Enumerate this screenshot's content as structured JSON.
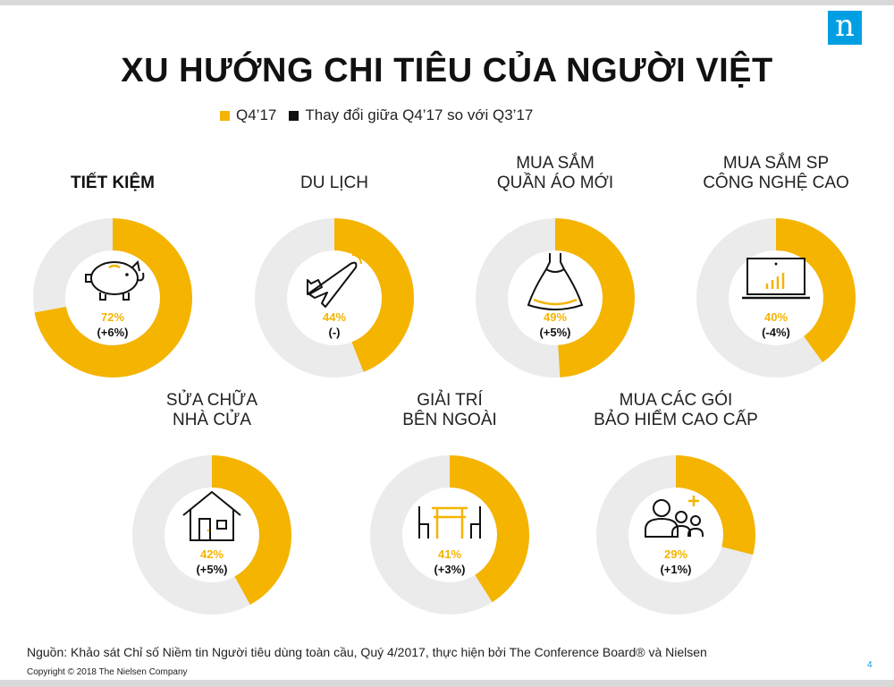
{
  "header": {
    "logo_text": "n",
    "title": "XU HƯỚNG CHI TIÊU CỦA NGƯỜI VIỆT"
  },
  "legend": [
    {
      "label": "Q4’17",
      "color": "#f4b400"
    },
    {
      "label": "Thay đổi giữa Q4’17 so với Q3’17",
      "color": "#111111"
    }
  ],
  "colors": {
    "accent": "#f4b400",
    "track": "#ebebeb",
    "brand": "#009fe3"
  },
  "chart_data": {
    "type": "pie",
    "style": "donut",
    "series_names": [
      "Q4’17",
      "Thay đổi giữa Q4’17 so với Q3’17"
    ],
    "items": [
      {
        "title_lines": [
          "TIẾT KIỆM"
        ],
        "value": 72,
        "value_label": "72%",
        "change_label": "(+6%)",
        "icon": "piggy-bank-icon",
        "highlight": true
      },
      {
        "title_lines": [
          "DU LỊCH"
        ],
        "value": 44,
        "value_label": "44%",
        "change_label": "(-)",
        "icon": "airplane-icon",
        "highlight": false
      },
      {
        "title_lines": [
          "MUA SẮM",
          "QUẦN ÁO MỚI"
        ],
        "value": 49,
        "value_label": "49%",
        "change_label": "(+5%)",
        "icon": "dress-icon",
        "highlight": false
      },
      {
        "title_lines": [
          "MUA SẮM SP",
          "CÔNG NGHỆ CAO"
        ],
        "value": 40,
        "value_label": "40%",
        "change_label": "(-4%)",
        "icon": "laptop-icon",
        "highlight": false
      },
      {
        "title_lines": [
          "SỬA CHỮA",
          "NHÀ CỬA"
        ],
        "value": 42,
        "value_label": "42%",
        "change_label": "(+5%)",
        "icon": "house-icon",
        "highlight": false
      },
      {
        "title_lines": [
          "GIẢI TRÍ",
          "BÊN NGOÀI"
        ],
        "value": 41,
        "value_label": "41%",
        "change_label": "(+3%)",
        "icon": "dining-table-icon",
        "highlight": false
      },
      {
        "title_lines": [
          "MUA CÁC GÓI",
          "BẢO HIỂM CAO CẤP"
        ],
        "value": 29,
        "value_label": "29%",
        "change_label": "(+1%)",
        "icon": "family-insurance-icon",
        "highlight": false
      }
    ]
  },
  "footer": {
    "source": "Nguồn: Khảo sát Chỉ số Niềm tin Người tiêu dùng toàn cầu, Quý 4/2017, thực hiện bởi The Conference Board® và Nielsen",
    "copyright": "Copyright © 2018 The Nielsen Company",
    "page_number": "4"
  }
}
